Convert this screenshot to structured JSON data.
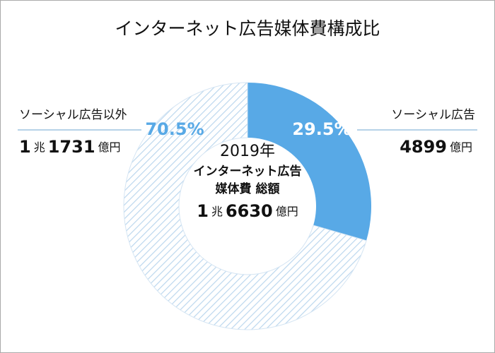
{
  "chart_data": {
    "type": "donut",
    "title": "インターネット広告媒体費構成比",
    "categories": [
      "ソーシャル広告",
      "ソーシャル広告以外"
    ],
    "values": [
      29.5,
      70.5
    ],
    "value_labels": [
      "29.5%",
      "70.5%"
    ],
    "colors": [
      "#58a9e6",
      "#bcd7ee"
    ],
    "hatched": [
      false,
      true
    ],
    "amounts": [
      [
        "4899",
        "億円"
      ],
      [
        "1",
        "兆",
        "1731",
        "億円"
      ]
    ],
    "center_text": [
      "2019年",
      "インターネット広告",
      "媒体費 総額"
    ],
    "total": [
      "1",
      "兆",
      "6630",
      "億円"
    ]
  }
}
